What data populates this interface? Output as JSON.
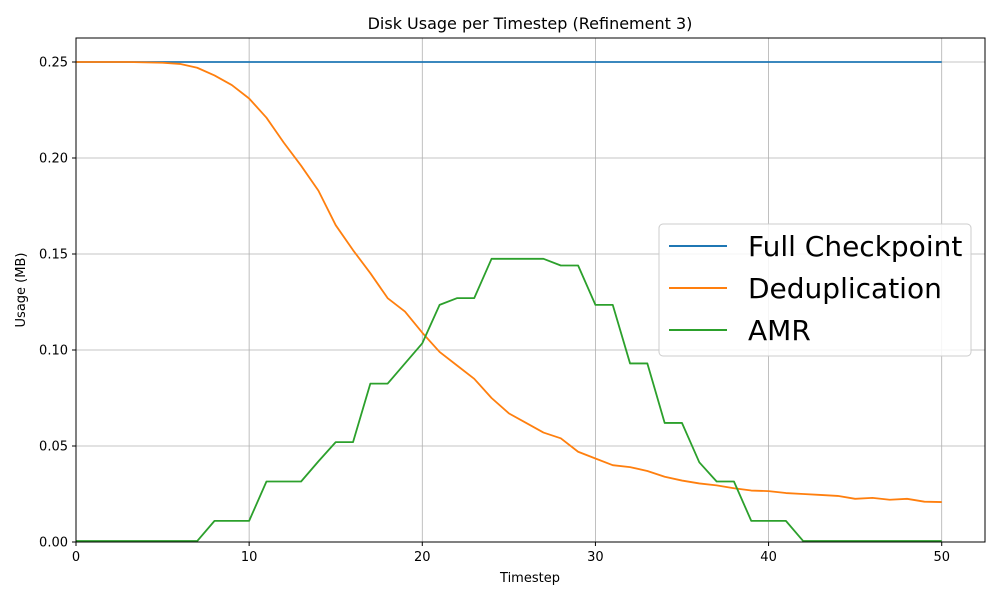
{
  "chart_data": {
    "type": "line",
    "title": "Disk Usage per Timestep (Refinement 3)",
    "xlabel": "Timestep",
    "ylabel": "Usage (MB)",
    "xlim": [
      0,
      52.5
    ],
    "ylim": [
      0,
      0.2625
    ],
    "xticks": [
      0,
      10,
      20,
      30,
      40,
      50
    ],
    "xtick_labels": [
      "0",
      "10",
      "20",
      "30",
      "40",
      "50"
    ],
    "yticks": [
      0.0,
      0.05,
      0.1,
      0.15,
      0.2,
      0.25
    ],
    "ytick_labels": [
      "0.00",
      "0.05",
      "0.10",
      "0.15",
      "0.20",
      "0.25"
    ],
    "grid": true,
    "legend_position": "center-right",
    "x": [
      0,
      1,
      2,
      3,
      4,
      5,
      6,
      7,
      8,
      9,
      10,
      11,
      12,
      13,
      14,
      15,
      16,
      17,
      18,
      19,
      20,
      21,
      22,
      23,
      24,
      25,
      26,
      27,
      28,
      29,
      30,
      31,
      32,
      33,
      34,
      35,
      36,
      37,
      38,
      39,
      40,
      41,
      42,
      43,
      44,
      45,
      46,
      47,
      48,
      49,
      50
    ],
    "series": [
      {
        "name": "Full Checkpoint",
        "color": "#1f77b4",
        "values": [
          0.25,
          0.25,
          0.25,
          0.25,
          0.25,
          0.25,
          0.25,
          0.25,
          0.25,
          0.25,
          0.25,
          0.25,
          0.25,
          0.25,
          0.25,
          0.25,
          0.25,
          0.25,
          0.25,
          0.25,
          0.25,
          0.25,
          0.25,
          0.25,
          0.25,
          0.25,
          0.25,
          0.25,
          0.25,
          0.25,
          0.25,
          0.25,
          0.25,
          0.25,
          0.25,
          0.25,
          0.25,
          0.25,
          0.25,
          0.25,
          0.25,
          0.25,
          0.25,
          0.25,
          0.25,
          0.25,
          0.25,
          0.25,
          0.25,
          0.25,
          0.25
        ]
      },
      {
        "name": "Deduplication",
        "color": "#ff7f0e",
        "values": [
          0.25,
          0.25,
          0.25,
          0.25,
          0.2498,
          0.2496,
          0.249,
          0.247,
          0.243,
          0.238,
          0.231,
          0.221,
          0.208,
          0.196,
          0.183,
          0.165,
          0.152,
          0.14,
          0.127,
          0.12,
          0.109,
          0.099,
          0.092,
          0.085,
          0.075,
          0.067,
          0.062,
          0.057,
          0.054,
          0.047,
          0.0435,
          0.04,
          0.039,
          0.037,
          0.034,
          0.032,
          0.0305,
          0.0295,
          0.028,
          0.0268,
          0.0265,
          0.0255,
          0.025,
          0.0245,
          0.024,
          0.0225,
          0.023,
          0.022,
          0.0225,
          0.021,
          0.0208
        ]
      },
      {
        "name": "AMR",
        "color": "#2ca02c",
        "values": [
          0.0005,
          0.0005,
          0.0005,
          0.0005,
          0.0005,
          0.0005,
          0.0005,
          0.0005,
          0.011,
          0.011,
          0.011,
          0.0315,
          0.0315,
          0.0315,
          0.042,
          0.052,
          0.052,
          0.0825,
          0.0825,
          0.093,
          0.1035,
          0.1235,
          0.127,
          0.127,
          0.1475,
          0.1475,
          0.1475,
          0.1475,
          0.144,
          0.144,
          0.1235,
          0.1235,
          0.093,
          0.093,
          0.062,
          0.062,
          0.0415,
          0.0315,
          0.0315,
          0.011,
          0.011,
          0.011,
          0.0005,
          0.0005,
          0.0005,
          0.0005,
          0.0005,
          0.0005,
          0.0005,
          0.0005,
          0.0005
        ]
      }
    ]
  }
}
